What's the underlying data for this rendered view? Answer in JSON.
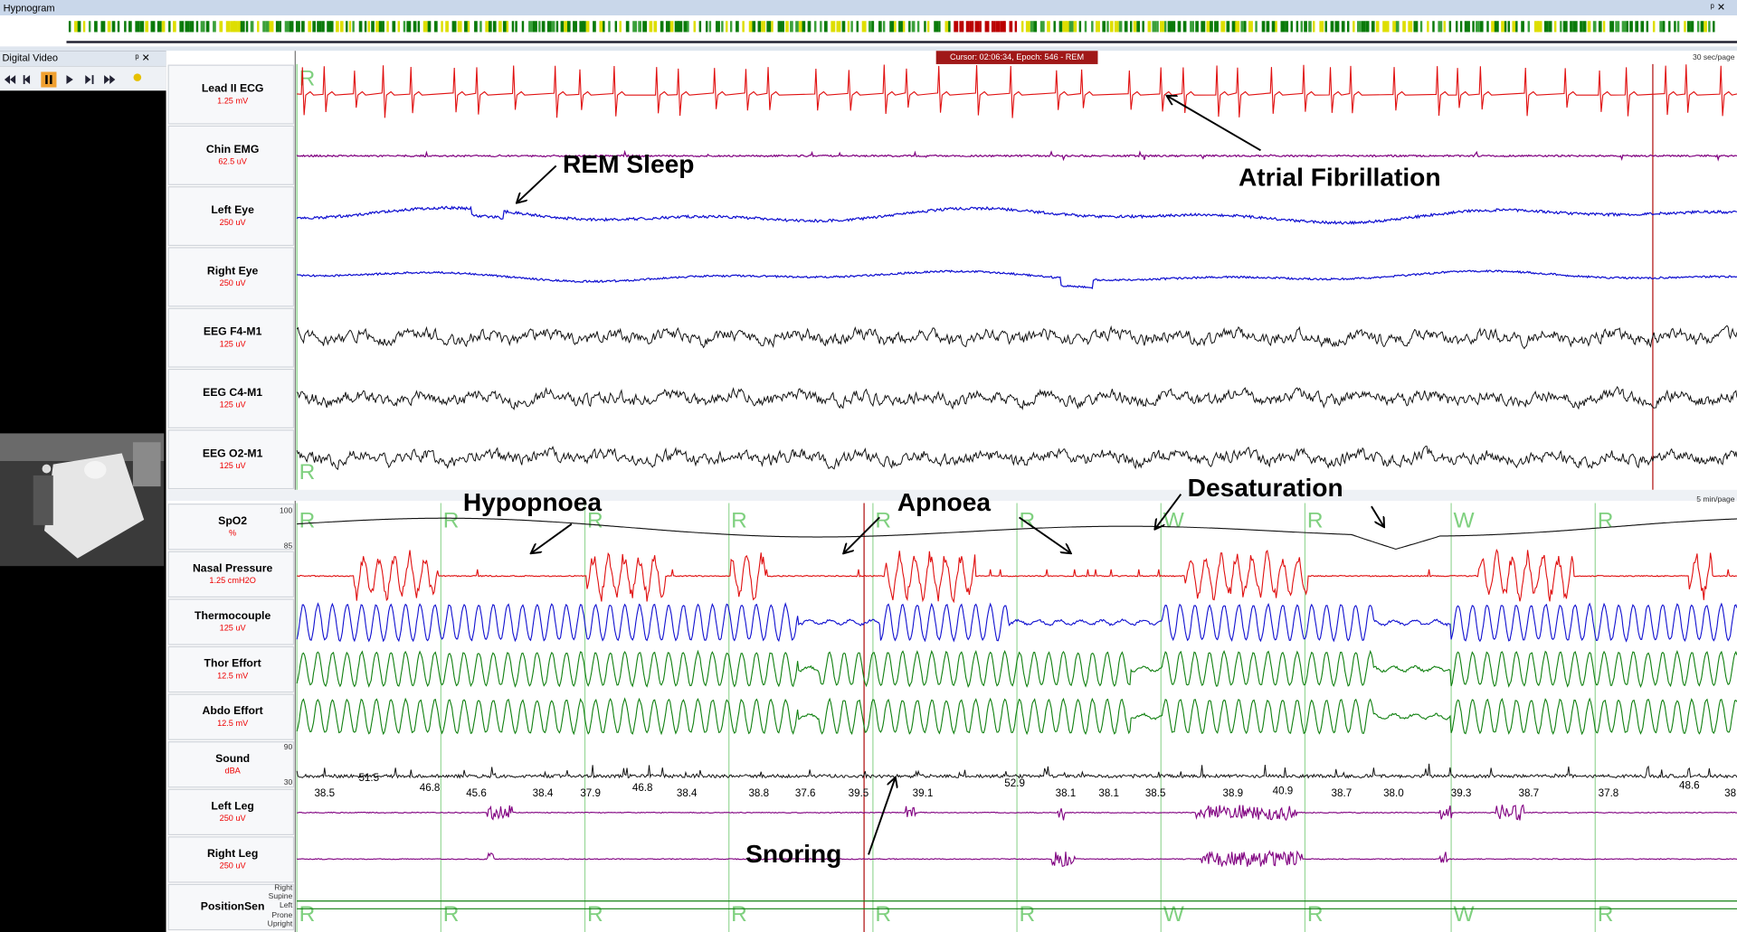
{
  "hypnogram": {
    "title": "Hypnogram"
  },
  "video": {
    "title": "Digital Video"
  },
  "cursor": "Cursor: 02:06:34, Epoch: 546 - REM",
  "top_panel": {
    "page_length": "30 sec/page",
    "stages": [
      "R",
      "R"
    ],
    "channels": [
      {
        "name": "Lead II ECG",
        "scale": "1.25 mV"
      },
      {
        "name": "Chin EMG",
        "scale": "62.5 uV"
      },
      {
        "name": "Left Eye",
        "scale": "250 uV"
      },
      {
        "name": "Right Eye",
        "scale": "250 uV"
      },
      {
        "name": "EEG F4-M1",
        "scale": "125 uV"
      },
      {
        "name": "EEG C4-M1",
        "scale": "125 uV"
      },
      {
        "name": "EEG O2-M1",
        "scale": "125 uV"
      }
    ]
  },
  "bottom_panel": {
    "page_length": "5 min/page",
    "channels": [
      {
        "name": "SpO2",
        "scale": "%"
      },
      {
        "name": "Nasal Pressure",
        "scale": "1.25 cmH2O"
      },
      {
        "name": "Thermocouple",
        "scale": "125 uV"
      },
      {
        "name": "Thor Effort",
        "scale": "12.5 mV"
      },
      {
        "name": "Abdo Effort",
        "scale": "12.5 mV"
      },
      {
        "name": "Sound",
        "scale": "dBA"
      },
      {
        "name": "Left Leg",
        "scale": "250 uV"
      },
      {
        "name": "Right Leg",
        "scale": "250 uV"
      },
      {
        "name": "PositionSen"
      }
    ],
    "spo2_axis": [
      "100",
      "85"
    ],
    "sound_axis": [
      "90",
      "30"
    ],
    "stages": [
      "R",
      "R",
      "R",
      "R",
      "R",
      "R",
      "W",
      "R",
      "W",
      "R"
    ],
    "position_stages": [
      "R",
      "R",
      "R",
      "R",
      "R",
      "R",
      "W",
      "R",
      "W",
      "R"
    ],
    "sound_levels": [
      "38.5",
      "51.5",
      "46.8",
      "45.6",
      "38.4",
      "37.9",
      "46.8",
      "38.4",
      "38.8",
      "37.6",
      "39.5",
      "39.1",
      "52.9",
      "38.1",
      "38.1",
      "38.5",
      "38.9",
      "40.9",
      "38.7",
      "38.0",
      "39.3",
      "38.7",
      "37.8",
      "48.6",
      "38"
    ],
    "position_levels": [
      "Right",
      "Supine",
      "Left",
      "Prone",
      "Upright"
    ]
  },
  "annotations": [
    "REM Sleep",
    "Atrial Fibrillation",
    "Hypopnoea",
    "Apnoea",
    "Desaturation",
    "Snoring"
  ]
}
